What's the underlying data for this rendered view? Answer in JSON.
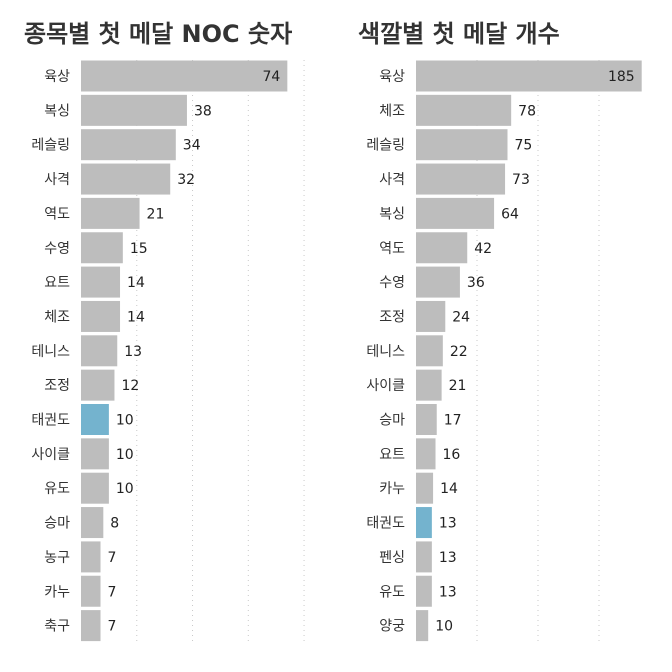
{
  "chart_data": [
    {
      "type": "bar",
      "orientation": "horizontal",
      "title": "종목별 첫 메달 NOC 숫자",
      "categories": [
        "육상",
        "복싱",
        "레슬링",
        "사격",
        "역도",
        "수영",
        "요트",
        "체조",
        "테니스",
        "조정",
        "태권도",
        "사이클",
        "유도",
        "승마",
        "농구",
        "카누",
        "축구"
      ],
      "values": [
        74,
        38,
        34,
        32,
        21,
        15,
        14,
        14,
        13,
        12,
        10,
        10,
        10,
        8,
        7,
        7,
        7
      ],
      "highlight": "태권도",
      "xlim": [
        0,
        85
      ],
      "grid": true,
      "colors": {
        "bar": "#bdbdbd",
        "highlight": "#74b3ce"
      }
    },
    {
      "type": "bar",
      "orientation": "horizontal",
      "title": "색깔별 첫 메달 개수",
      "categories": [
        "육상",
        "체조",
        "레슬링",
        "사격",
        "복싱",
        "역도",
        "수영",
        "조정",
        "테니스",
        "사이클",
        "승마",
        "요트",
        "카누",
        "태권도",
        "펜싱",
        "유도",
        "양궁"
      ],
      "values": [
        185,
        78,
        75,
        73,
        64,
        42,
        36,
        24,
        22,
        21,
        17,
        16,
        14,
        13,
        13,
        13,
        10
      ],
      "highlight": "태권도",
      "xlim": [
        0,
        200
      ],
      "grid": true,
      "colors": {
        "bar": "#bdbdbd",
        "highlight": "#74b3ce"
      }
    }
  ]
}
